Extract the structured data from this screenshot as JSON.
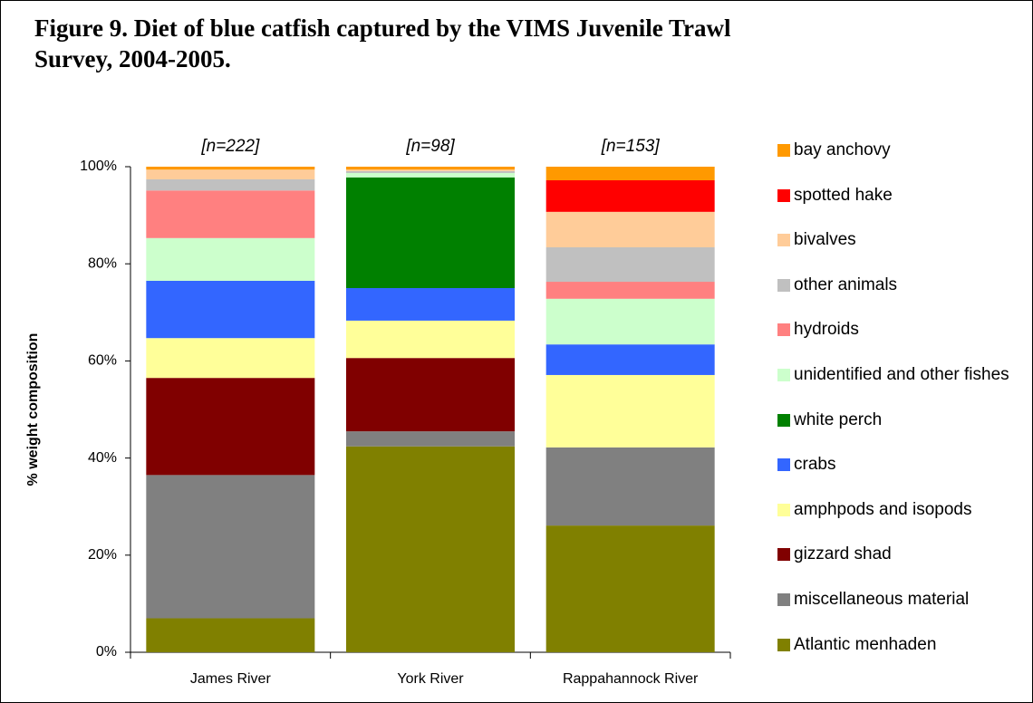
{
  "chart_data": {
    "type": "stacked_bar",
    "title": "Figure 9.  Diet of blue catfish captured by the VIMS Juvenile Trawl Survey, 2004-2005.",
    "y_label": "% weight composition",
    "categories": [
      "James River",
      "York River",
      "Rappahannock River"
    ],
    "annotations": [
      "[n=222]",
      "[n=98]",
      "[n=153]"
    ],
    "ylim": [
      0,
      100
    ],
    "yticks": [
      {
        "value": 0,
        "label": "0%"
      },
      {
        "value": 20,
        "label": "20%"
      },
      {
        "value": 40,
        "label": "40%"
      },
      {
        "value": 60,
        "label": "60%"
      },
      {
        "value": 80,
        "label": "80%"
      },
      {
        "value": 100,
        "label": "100%"
      }
    ],
    "series": [
      {
        "name": "Atlantic menhaden",
        "color": "#808000",
        "values": [
          7,
          42.4,
          26.1
        ]
      },
      {
        "name": "miscellaneous material",
        "color": "#808080",
        "values": [
          29.5,
          3.1,
          16.1
        ]
      },
      {
        "name": "gizzard shad",
        "color": "#800000",
        "values": [
          20,
          15.1,
          0
        ]
      },
      {
        "name": "amphpods and isopods",
        "color": "#FFFF99",
        "values": [
          8.2,
          7.7,
          14.9
        ]
      },
      {
        "name": "crabs",
        "color": "#3366FF",
        "values": [
          11.8,
          6.7,
          6.3
        ]
      },
      {
        "name": "white perch",
        "color": "#008000",
        "values": [
          0,
          22.8,
          0
        ]
      },
      {
        "name": "unidentified and other fishes",
        "color": "#CCFFCC",
        "values": [
          8.8,
          0.9,
          9.4
        ]
      },
      {
        "name": "hydroids",
        "color": "#FF8080",
        "values": [
          9.8,
          0,
          3.5
        ]
      },
      {
        "name": "other animals",
        "color": "#C0C0C0",
        "values": [
          2.3,
          0.4,
          7.1
        ]
      },
      {
        "name": "bivalves",
        "color": "#FFCC99",
        "values": [
          2,
          0.3,
          7.3
        ]
      },
      {
        "name": "spotted hake",
        "color": "#FF0000",
        "values": [
          0,
          0,
          6.5
        ]
      },
      {
        "name": "bay anchovy",
        "color": "#FF9900",
        "values": [
          0.6,
          0.6,
          2.8
        ]
      }
    ]
  }
}
